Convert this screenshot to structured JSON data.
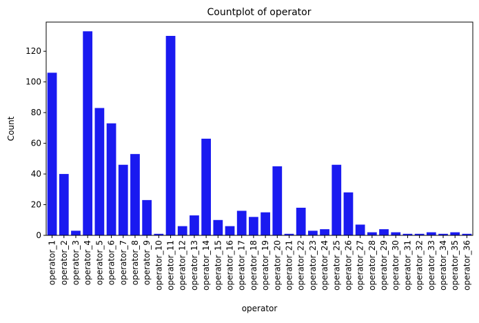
{
  "chart_data": {
    "type": "bar",
    "title": "Countplot of operator",
    "xlabel": "operator",
    "ylabel": "Count",
    "ylim": [
      0,
      139
    ],
    "yticks": [
      0,
      20,
      40,
      60,
      80,
      100,
      120
    ],
    "grid": false,
    "bar_color": "#1a1af0",
    "categories": [
      "operator_1",
      "operator_2",
      "operator_3",
      "operator_4",
      "operator_5",
      "operator_6",
      "operator_7",
      "operator_8",
      "operator_9",
      "operator_10",
      "operator_11",
      "operator_12",
      "operator_13",
      "operator_14",
      "operator_15",
      "operator_16",
      "operator_17",
      "operator_18",
      "operator_19",
      "operator_20",
      "operator_21",
      "operator_22",
      "operator_23",
      "operator_24",
      "operator_25",
      "operator_26",
      "operator_27",
      "operator_28",
      "operator_29",
      "operator_30",
      "operator_31",
      "operator_32",
      "operator_33",
      "operator_34",
      "operator_35",
      "operator_36"
    ],
    "values": [
      106,
      40,
      3,
      133,
      83,
      73,
      46,
      53,
      23,
      1,
      130,
      6,
      13,
      63,
      10,
      6,
      16,
      12,
      15,
      45,
      1,
      18,
      3,
      4,
      46,
      28,
      7,
      2,
      4,
      2,
      1,
      1,
      2,
      1,
      2,
      1
    ]
  }
}
